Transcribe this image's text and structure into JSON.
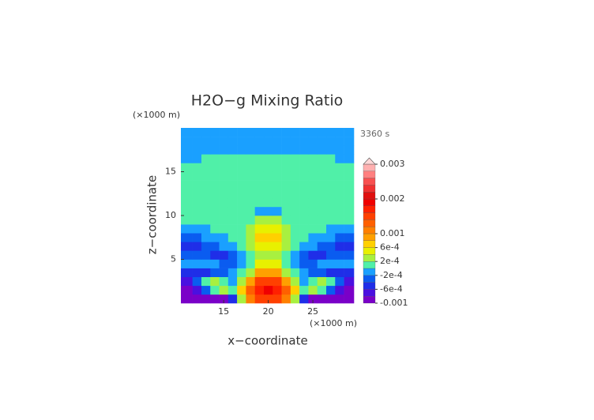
{
  "chart_data": {
    "type": "contour",
    "title": "H2O−g Mixing Ratio",
    "time": "3360 s",
    "x_label": "x−coordinate",
    "y_label": "z−coordinate",
    "x_unit": "(×1000 m)",
    "y_unit": "(×1000 m)",
    "xlim": [
      10.2,
      29.6
    ],
    "ylim": [
      0,
      20
    ],
    "xticks": [
      15,
      20,
      25
    ],
    "yticks": [
      5,
      10,
      15
    ],
    "x": [
      11,
      12,
      13,
      14,
      15,
      16,
      17,
      18,
      19,
      20,
      21,
      22,
      23,
      24,
      25,
      26,
      27,
      28,
      29
    ],
    "y": [
      0.5,
      1.5,
      2.5,
      3.5,
      4.5,
      5.5,
      6.5,
      7.5,
      8.5,
      9.5,
      10.5,
      11.5,
      12.5,
      13.5,
      14.5,
      15.5,
      16.5,
      17.5,
      18.5,
      19.5
    ],
    "z": [
      [
        -0.0009,
        -0.0009,
        -0.0009,
        -0.0009,
        -0.0009,
        -0.0005,
        0.0003,
        0.0011,
        0.0015,
        0.0015,
        0.0015,
        0.0011,
        0.0003,
        -0.0005,
        -0.0009,
        -0.0009,
        -0.0009,
        -0.0009,
        -0.0009
      ],
      [
        -0.0009,
        -0.0007,
        -0.0003,
        0.0001,
        0.0003,
        0.0001,
        0.0007,
        0.0013,
        0.0017,
        0.0019,
        0.0017,
        0.0013,
        0.0007,
        0.0001,
        0.0003,
        0.0001,
        -0.0003,
        -0.0007,
        -0.0009
      ],
      [
        -0.0007,
        -0.0003,
        0.0001,
        0.0003,
        0.0001,
        -0.0001,
        0.0003,
        0.0009,
        0.0015,
        0.0015,
        0.0015,
        0.0009,
        0.0003,
        -0.0001,
        0.0001,
        0.0003,
        0.0001,
        -0.0003,
        -0.0007
      ],
      [
        -0.0005,
        -0.0005,
        -0.0005,
        -0.0003,
        -0.0003,
        -0.0001,
        0.0001,
        0.0003,
        0.0009,
        0.0009,
        0.0009,
        0.0003,
        0.0001,
        -0.0001,
        -0.0003,
        -0.0003,
        -0.0005,
        -0.0005,
        -0.0005
      ],
      [
        -0.0001,
        -0.0001,
        -0.0001,
        -0.0001,
        -0.0003,
        -0.0003,
        -0.0001,
        0.0001,
        0.0005,
        0.0005,
        0.0005,
        0.0001,
        -0.0001,
        -0.0003,
        -0.0003,
        -0.0001,
        -0.0001,
        -0.0001,
        -0.0001
      ],
      [
        -0.0003,
        -0.0003,
        -0.0003,
        -0.0005,
        -0.0005,
        -0.0003,
        -0.0001,
        0.0001,
        0.0003,
        0.0003,
        0.0003,
        0.0001,
        -0.0001,
        -0.0003,
        -0.0005,
        -0.0005,
        -0.0003,
        -0.0003,
        -0.0003
      ],
      [
        -0.0005,
        -0.0005,
        -0.0003,
        -0.0003,
        -0.0001,
        -0.0001,
        0.0001,
        0.0003,
        0.0005,
        0.0005,
        0.0005,
        0.0003,
        0.0001,
        -0.0001,
        -0.0001,
        -0.0003,
        -0.0003,
        -0.0005,
        -0.0005
      ],
      [
        -0.0003,
        -0.0003,
        -0.0001,
        -0.0001,
        -0.0001,
        0.0001,
        0.0001,
        0.0003,
        0.0007,
        0.0007,
        0.0007,
        0.0003,
        0.0001,
        0.0001,
        -0.0001,
        -0.0001,
        -0.0001,
        -0.0003,
        -0.0003
      ],
      [
        -0.0001,
        -0.0001,
        -0.0001,
        0.0001,
        0.0001,
        0.0001,
        0.0001,
        0.0003,
        0.0005,
        0.0005,
        0.0005,
        0.0003,
        0.0001,
        0.0001,
        0.0001,
        0.0001,
        -0.0001,
        -0.0001,
        -0.0001
      ],
      [
        0.0001,
        0.0001,
        0.0001,
        0.0001,
        0.0001,
        0.0001,
        0.0001,
        0.0001,
        0.0003,
        0.0003,
        0.0003,
        0.0001,
        0.0001,
        0.0001,
        0.0001,
        0.0001,
        0.0001,
        0.0001,
        0.0001
      ],
      [
        0.0001,
        0.0001,
        0.0001,
        0.0001,
        0.0001,
        0.0001,
        0.0001,
        0.0001,
        -0.0001,
        -0.0001,
        -0.0001,
        0.0001,
        0.0001,
        0.0001,
        0.0001,
        0.0001,
        0.0001,
        0.0001,
        0.0001
      ],
      [
        0.0001,
        0.0001,
        0.0001,
        0.0001,
        0.0001,
        0.0001,
        0.0001,
        0.0001,
        0.0001,
        0.0001,
        0.0001,
        0.0001,
        0.0001,
        0.0001,
        0.0001,
        0.0001,
        0.0001,
        0.0001,
        0.0001
      ],
      [
        0.0001,
        0.0001,
        0.0001,
        0.0001,
        0.0001,
        0.0001,
        0.0001,
        0.0001,
        0.0001,
        0.0001,
        0.0001,
        0.0001,
        0.0001,
        0.0001,
        0.0001,
        0.0001,
        0.0001,
        0.0001,
        0.0001
      ],
      [
        0.0001,
        0.0001,
        0.0001,
        0.0001,
        0.0001,
        0.0001,
        0.0001,
        0.0001,
        0.0001,
        0.0001,
        0.0001,
        0.0001,
        0.0001,
        0.0001,
        0.0001,
        0.0001,
        0.0001,
        0.0001,
        0.0001
      ],
      [
        0.0001,
        0.0001,
        0.0001,
        0.0001,
        0.0001,
        0.0001,
        0.0001,
        0.0001,
        0.0001,
        0.0001,
        0.0001,
        0.0001,
        0.0001,
        0.0001,
        0.0001,
        0.0001,
        0.0001,
        0.0001,
        0.0001
      ],
      [
        0.0001,
        0.0001,
        0.0001,
        0.0001,
        0.0001,
        0.0001,
        0.0001,
        0.0001,
        0.0001,
        0.0001,
        0.0001,
        0.0001,
        0.0001,
        0.0001,
        0.0001,
        0.0001,
        0.0001,
        0.0001,
        0.0001
      ],
      [
        -0.0001,
        -0.0001,
        0.0001,
        0.0001,
        0.0001,
        0.0001,
        0.0001,
        0.0001,
        0.0001,
        0.0001,
        0.0001,
        0.0001,
        0.0001,
        0.0001,
        0.0001,
        0.0001,
        0.0001,
        -0.0001,
        -0.0001
      ],
      [
        -0.0001,
        -0.0001,
        -0.0001,
        -0.0001,
        -0.0001,
        -0.0001,
        -0.0001,
        -0.0001,
        -0.0001,
        -0.0001,
        -0.0001,
        -0.0001,
        -0.0001,
        -0.0001,
        -0.0001,
        -0.0001,
        -0.0001,
        -0.0001,
        -0.0001
      ],
      [
        -0.0001,
        -0.0001,
        -0.0001,
        -0.0001,
        -0.0001,
        -0.0001,
        -0.0001,
        -0.0001,
        -0.0001,
        -0.0001,
        -0.0001,
        -0.0001,
        -0.0001,
        -0.0001,
        -0.0001,
        -0.0001,
        -0.0001,
        -0.0001,
        -0.0001
      ],
      [
        -0.0001,
        -0.0001,
        -0.0001,
        -0.0001,
        -0.0001,
        -0.0001,
        -0.0001,
        -0.0001,
        -0.0001,
        -0.0001,
        -0.0001,
        -0.0001,
        -0.0001,
        -0.0001,
        -0.0001,
        -0.0001,
        -0.0001,
        -0.0001,
        -0.0001
      ]
    ],
    "levels": [
      -0.001,
      -0.0008,
      -0.0006,
      -0.0004,
      -0.0002,
      0,
      0.0002,
      0.0004,
      0.0006,
      0.0008,
      0.001,
      0.0012,
      0.0014,
      0.0016,
      0.0018,
      0.002,
      0.0022,
      0.0024,
      0.0026,
      0.0028,
      0.003
    ],
    "colors": [
      "#7a00c8",
      "#4a10e0",
      "#1f2ee8",
      "#0a5cf0",
      "#1aa0ff",
      "#50f0a8",
      "#a8f040",
      "#e8f000",
      "#ffd000",
      "#ffa000",
      "#ff8000",
      "#ff6000",
      "#ff4000",
      "#ff2000",
      "#f00000",
      "#e01010",
      "#f03030",
      "#f85050",
      "#ff8080",
      "#ffb0b0"
    ],
    "extend_color": "#ffd8d8",
    "colorbar_ticks": [
      -0.001,
      {
        "value": -0.0006,
        "label": "-6e-4"
      },
      {
        "value": -0.0002,
        "label": "-2e-4"
      },
      {
        "value": 0.0002,
        "label": "2e-4"
      },
      {
        "value": 0.0006,
        "label": "6e-4"
      },
      0.001,
      0.002,
      0.003
    ]
  }
}
